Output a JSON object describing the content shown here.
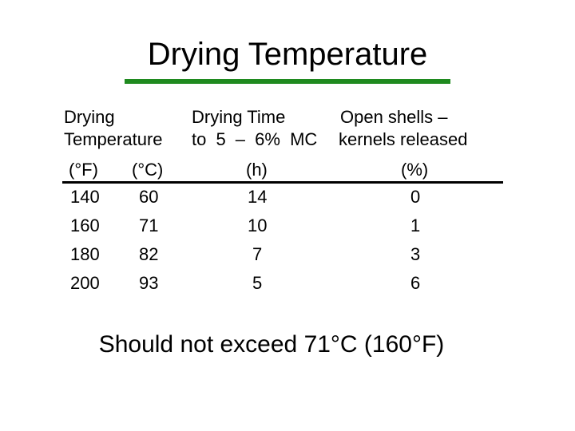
{
  "title": "Drying Temperature",
  "colors": {
    "accent": "#1f8a1f",
    "text": "#000000",
    "background": "#ffffff"
  },
  "table": {
    "headers": {
      "temperature_line1": "Drying",
      "temperature_line2": "Temperature",
      "time_line1": "Drying Time",
      "time_line2": "to 5 – 6% MC",
      "shells_line1": "Open shells –",
      "shells_line2": "kernels released"
    },
    "units": [
      "(°F)",
      "(°C)",
      "(h)",
      "(%)"
    ],
    "rows": [
      [
        "140",
        "60",
        "14",
        "0"
      ],
      [
        "160",
        "71",
        "10",
        "1"
      ],
      [
        "180",
        "82",
        "7",
        "3"
      ],
      [
        "200",
        "93",
        "5",
        "6"
      ]
    ]
  },
  "note": "Should not exceed 71°C (160°F)"
}
